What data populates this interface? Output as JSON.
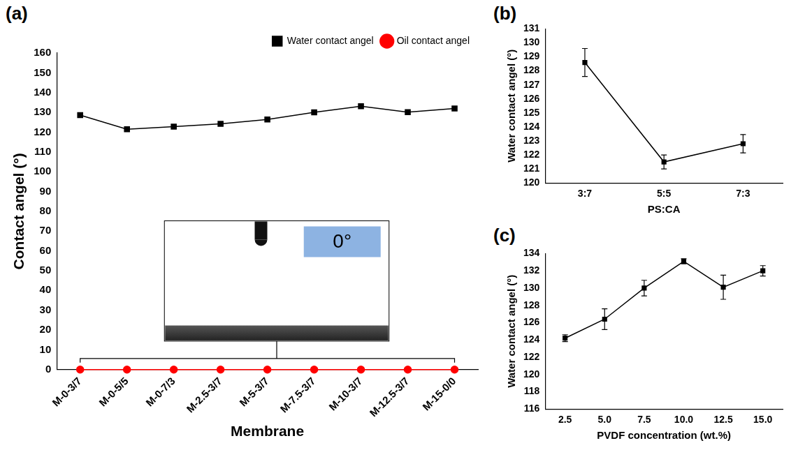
{
  "chart_data": [
    {
      "type": "line",
      "panel_label": "(a)",
      "x_label": "Membrane",
      "y_label": "Contact angel (°)",
      "categories": [
        "M-0-3/7",
        "M-0-5/5",
        "M-0-7/3",
        "M-2.5-3/7",
        "M-5-3/7",
        "M-7.5-3/7",
        "M-10-3/7",
        "M-12.5-3/7",
        "M-15-0/0"
      ],
      "series": [
        {
          "name": "Water contact angel",
          "color": "#000000",
          "marker": "square",
          "values": [
            128.6,
            121.5,
            122.8,
            124.2,
            126.4,
            130.0,
            133.1,
            130.1,
            132.0
          ]
        },
        {
          "name": "Oil contact angel",
          "color": "#ff0000",
          "marker": "circle",
          "values": [
            0,
            0,
            0,
            0,
            0,
            0,
            0,
            0,
            0
          ]
        }
      ],
      "annotations": [
        "0°"
      ],
      "ylim": [
        0,
        160
      ],
      "yticks": [
        0,
        10,
        20,
        30,
        40,
        50,
        60,
        70,
        80,
        90,
        100,
        110,
        120,
        130,
        140,
        150,
        160
      ],
      "grid": false,
      "legend": "top right"
    },
    {
      "type": "line",
      "panel_label": "(b)",
      "x_label": "PS:CA",
      "y_label": "Water contact angel (°)",
      "categories": [
        "3:7",
        "5:5",
        "7:3"
      ],
      "values": [
        128.6,
        121.5,
        122.8
      ],
      "errors": [
        1.0,
        0.5,
        0.65
      ],
      "color": "#000000",
      "marker": "square",
      "ylim": [
        120,
        131
      ],
      "yticks": [
        120,
        121,
        122,
        123,
        124,
        125,
        126,
        127,
        128,
        129,
        130,
        131
      ],
      "grid": false
    },
    {
      "type": "line",
      "panel_label": "(c)",
      "x_label": "PVDF concentration (wt.%)",
      "y_label": "Water contact angel (°)",
      "categories": [
        "2.5",
        "5.0",
        "7.5",
        "10.0",
        "12.5",
        "15.0"
      ],
      "values": [
        124.2,
        126.4,
        130.0,
        133.1,
        130.1,
        132.0
      ],
      "errors": [
        0.4,
        1.2,
        0.9,
        0.3,
        1.4,
        0.6
      ],
      "color": "#000000",
      "marker": "square",
      "ylim": [
        116,
        134
      ],
      "yticks": [
        116,
        118,
        120,
        122,
        124,
        126,
        128,
        130,
        132,
        134
      ],
      "grid": false
    }
  ]
}
